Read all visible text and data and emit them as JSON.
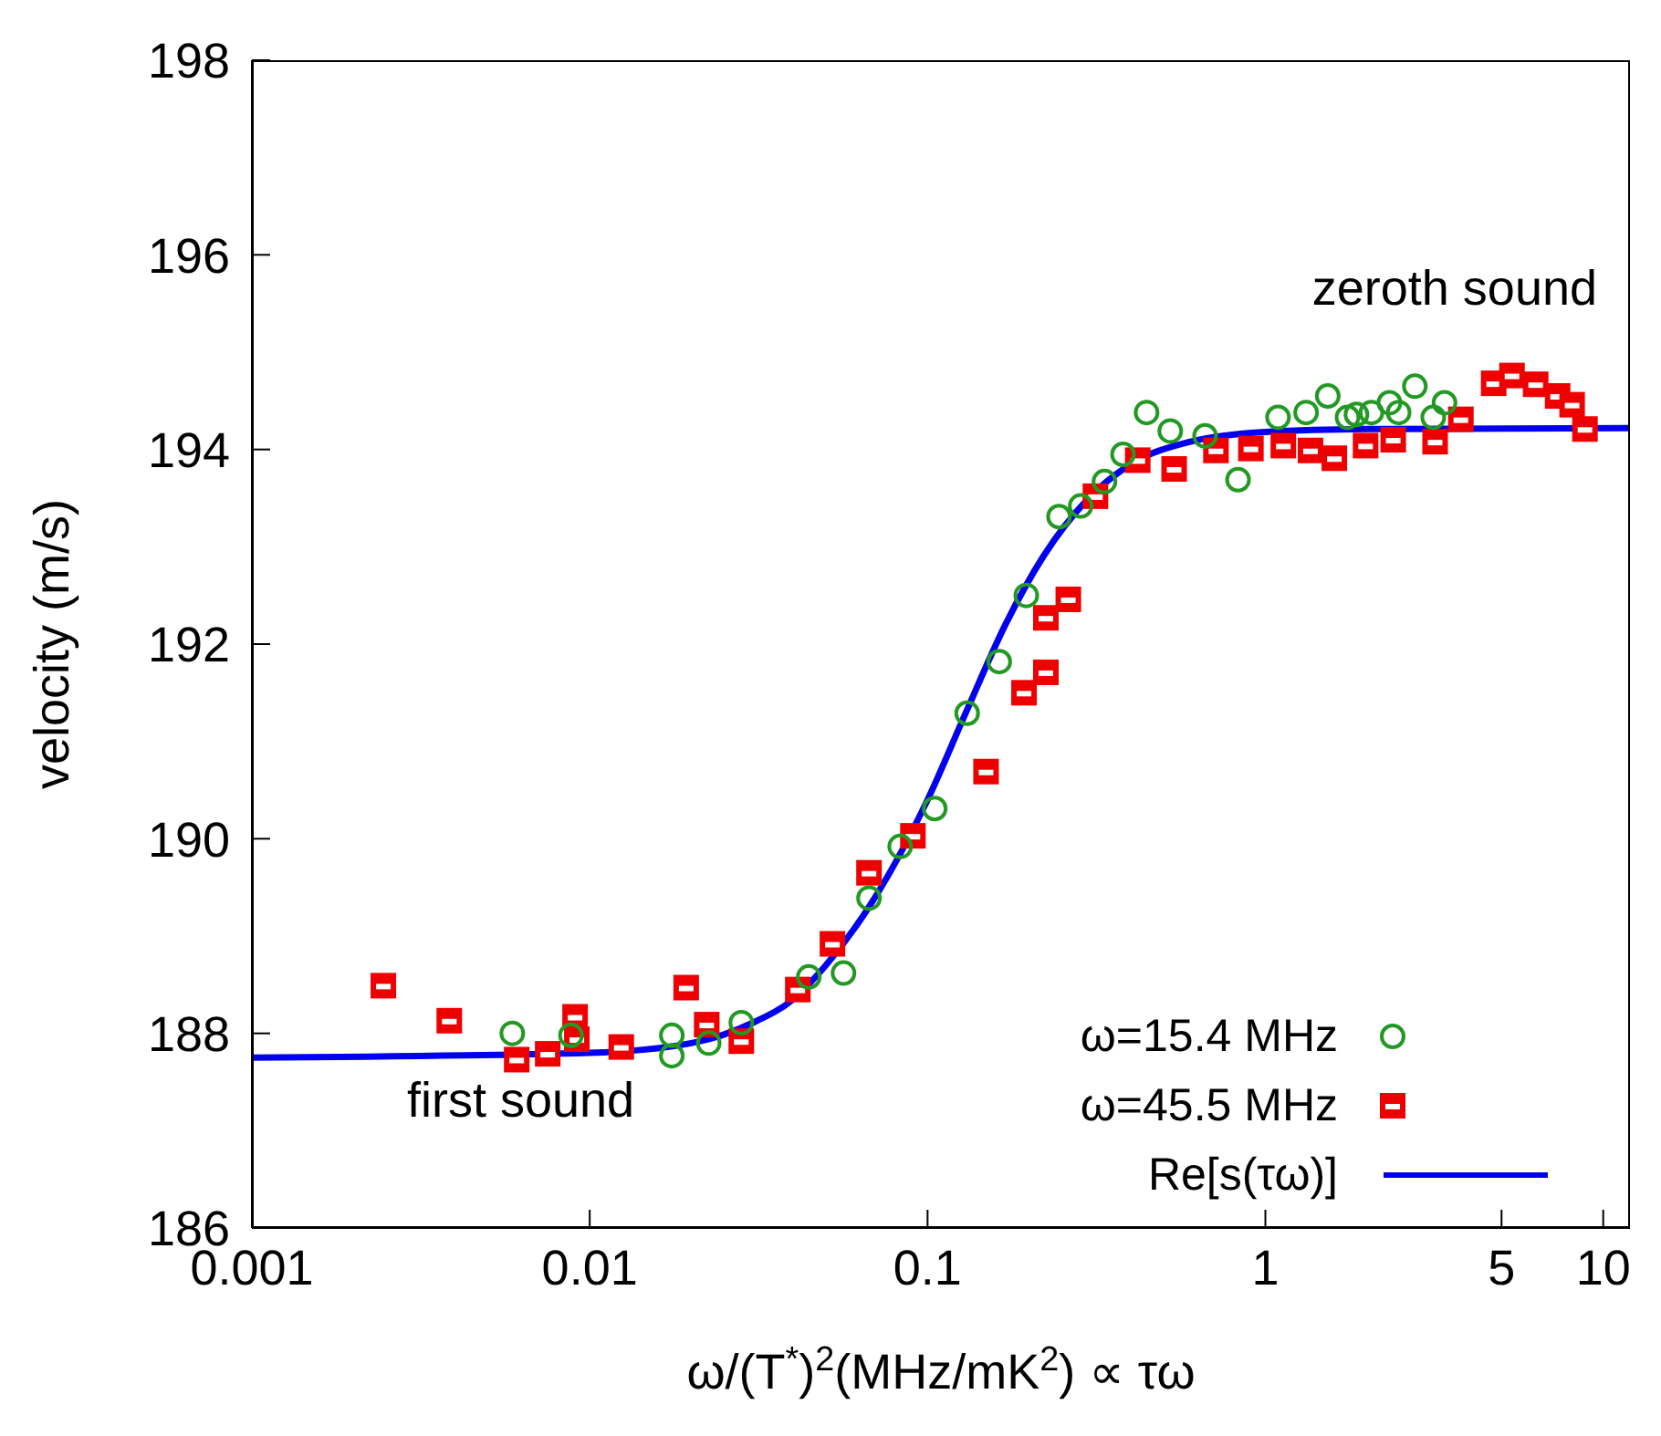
{
  "chart_data": {
    "type": "scatter",
    "xlabel": "ω/(T$^{*}$)$^{2}$(MHz/mK$^{2}$) ∝ τω",
    "ylabel": "velocity (m/s)",
    "log": "x",
    "xlim": [
      0.001,
      12
    ],
    "xticks": [
      0.001,
      0.01,
      0.1,
      1,
      5,
      10
    ],
    "ylim": [
      186,
      198
    ],
    "yticks": [
      186,
      188,
      190,
      192,
      194,
      196,
      198
    ],
    "grid": false,
    "legend": "bottom right",
    "annotations": [
      "zeroth sound",
      "first sound"
    ],
    "series": [
      {
        "name": "ω=15.4 MHz",
        "type": "scatter",
        "marker": "circle",
        "color": "#229922",
        "x": [
          0.0059,
          0.0088,
          0.0175,
          0.0175,
          0.0225,
          0.0281,
          0.0445,
          0.0564,
          0.0671,
          0.083,
          0.105,
          0.131,
          0.163,
          0.196,
          0.245,
          0.284,
          0.334,
          0.379,
          0.445,
          0.523,
          0.663,
          0.83,
          1.09,
          1.32,
          1.53,
          1.75,
          1.86,
          2.06,
          2.33,
          2.48,
          2.77,
          3.14,
          3.39
        ],
        "values": [
          188.0,
          187.98,
          187.98,
          187.77,
          187.9,
          188.11,
          188.58,
          188.62,
          189.39,
          189.92,
          190.31,
          191.29,
          191.82,
          192.5,
          193.31,
          193.42,
          193.67,
          193.95,
          194.38,
          194.19,
          194.14,
          193.69,
          194.33,
          194.38,
          194.55,
          194.33,
          194.36,
          194.38,
          194.48,
          194.38,
          194.65,
          194.33,
          194.48
        ]
      },
      {
        "name": "ω=45.5 MHz",
        "type": "scatter",
        "marker": "square",
        "color": "#ee0000",
        "x": [
          0.00245,
          0.00384,
          0.00608,
          0.00751,
          0.00905,
          0.00916,
          0.0124,
          0.0193,
          0.0222,
          0.0281,
          0.0413,
          0.0523,
          0.0671,
          0.0905,
          0.149,
          0.193,
          0.224,
          0.224,
          0.261,
          0.314,
          0.419,
          0.537,
          0.714,
          0.906,
          1.13,
          1.36,
          1.6,
          1.98,
          2.39,
          3.18,
          3.79,
          4.74,
          5.37,
          6.31,
          7.33,
          8.09,
          8.83
        ],
        "values": [
          188.49,
          188.13,
          187.73,
          187.79,
          188.17,
          187.94,
          187.86,
          188.47,
          188.09,
          187.92,
          188.45,
          188.92,
          189.65,
          190.03,
          190.69,
          191.5,
          191.71,
          192.27,
          192.46,
          193.52,
          193.89,
          193.8,
          193.99,
          194.01,
          194.04,
          193.99,
          193.91,
          194.04,
          194.1,
          194.08,
          194.31,
          194.68,
          194.76,
          194.67,
          194.55,
          194.46,
          194.21
        ]
      },
      {
        "name": "Re[s(τω)]",
        "type": "line",
        "marker": "none",
        "line_style": "solid",
        "color": "#0000ee",
        "x": [
          0.001,
          0.01,
          0.02,
          0.03,
          0.04,
          0.05,
          0.07,
          0.1,
          0.13,
          0.17,
          0.22,
          0.3,
          0.4,
          0.6,
          1,
          2,
          12
        ],
        "values": [
          187.75,
          187.8,
          187.9,
          188.1,
          188.35,
          188.7,
          189.4,
          190.4,
          191.3,
          192.2,
          192.9,
          193.5,
          193.85,
          194.08,
          194.18,
          194.21,
          194.22
        ]
      }
    ]
  }
}
